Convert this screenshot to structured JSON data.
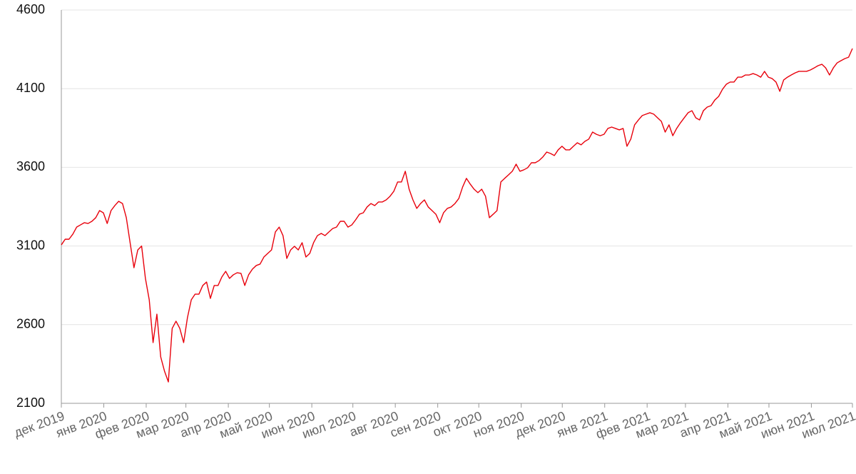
{
  "chart_data": {
    "type": "line",
    "xlim": [
      "2019-12",
      "2021-07"
    ],
    "xticks": [
      {
        "value": "2019-12",
        "label": "дек 2019"
      },
      {
        "value": "2020-01",
        "label": "янв 2020"
      },
      {
        "value": "2020-02",
        "label": "фев 2020"
      },
      {
        "value": "2020-03",
        "label": "мар 2020"
      },
      {
        "value": "2020-04",
        "label": "апр 2020"
      },
      {
        "value": "2020-05",
        "label": "май 2020"
      },
      {
        "value": "2020-06",
        "label": "июн 2020"
      },
      {
        "value": "2020-07",
        "label": "июл 2020"
      },
      {
        "value": "2020-08",
        "label": "авг 2020"
      },
      {
        "value": "2020-09",
        "label": "сен 2020"
      },
      {
        "value": "2020-10",
        "label": "окт 2020"
      },
      {
        "value": "2020-11",
        "label": "ноя 2020"
      },
      {
        "value": "2020-12",
        "label": "дек 2020"
      },
      {
        "value": "2021-01",
        "label": "янв 2021"
      },
      {
        "value": "2021-02",
        "label": "фев 2021"
      },
      {
        "value": "2021-03",
        "label": "мар 2021"
      },
      {
        "value": "2021-04",
        "label": "апр 2021"
      },
      {
        "value": "2021-05",
        "label": "май 2021"
      },
      {
        "value": "2021-06",
        "label": "июн 2021"
      },
      {
        "value": "2021-07",
        "label": "июл 2021"
      }
    ],
    "ylim": [
      2100,
      4600
    ],
    "yticks": [
      2100,
      2600,
      3100,
      3600,
      4100,
      4600
    ],
    "grid": true,
    "color": "#e8000b",
    "values": [
      3107,
      3143,
      3143,
      3175,
      3220,
      3234,
      3248,
      3243,
      3257,
      3280,
      3325,
      3311,
      3243,
      3325,
      3357,
      3384,
      3370,
      3280,
      3120,
      2962,
      3075,
      3100,
      2894,
      2758,
      2486,
      2667,
      2395,
      2304,
      2236,
      2576,
      2622,
      2576,
      2486,
      2645,
      2758,
      2794,
      2794,
      2849,
      2871,
      2767,
      2849,
      2849,
      2903,
      2939,
      2894,
      2917,
      2930,
      2926,
      2849,
      2917,
      2953,
      2976,
      2985,
      3030,
      3053,
      3075,
      3189,
      3220,
      3166,
      3021,
      3075,
      3098,
      3075,
      3121,
      3030,
      3053,
      3121,
      3166,
      3180,
      3166,
      3189,
      3211,
      3220,
      3257,
      3257,
      3220,
      3234,
      3266,
      3302,
      3311,
      3348,
      3370,
      3357,
      3380,
      3380,
      3393,
      3416,
      3448,
      3507,
      3507,
      3575,
      3461,
      3393,
      3339,
      3370,
      3393,
      3348,
      3325,
      3302,
      3248,
      3311,
      3339,
      3348,
      3370,
      3402,
      3475,
      3530,
      3493,
      3461,
      3439,
      3461,
      3416,
      3280,
      3302,
      3325,
      3507,
      3530,
      3552,
      3575,
      3620,
      3575,
      3584,
      3597,
      3629,
      3629,
      3643,
      3666,
      3697,
      3688,
      3675,
      3711,
      3734,
      3711,
      3711,
      3734,
      3756,
      3743,
      3765,
      3779,
      3824,
      3810,
      3801,
      3810,
      3847,
      3856,
      3847,
      3838,
      3847,
      3734,
      3779,
      3870,
      3901,
      3929,
      3938,
      3947,
      3938,
      3915,
      3892,
      3824,
      3870,
      3801,
      3847,
      3883,
      3915,
      3947,
      3960,
      3915,
      3901,
      3960,
      3983,
      3992,
      4028,
      4051,
      4096,
      4128,
      4142,
      4142,
      4173,
      4173,
      4187,
      4187,
      4196,
      4187,
      4173,
      4210,
      4173,
      4164,
      4142,
      4083,
      4155,
      4173,
      4187,
      4200,
      4210,
      4210,
      4210,
      4219,
      4232,
      4246,
      4255,
      4232,
      4187,
      4232,
      4264,
      4278,
      4291,
      4300,
      4355
    ]
  }
}
